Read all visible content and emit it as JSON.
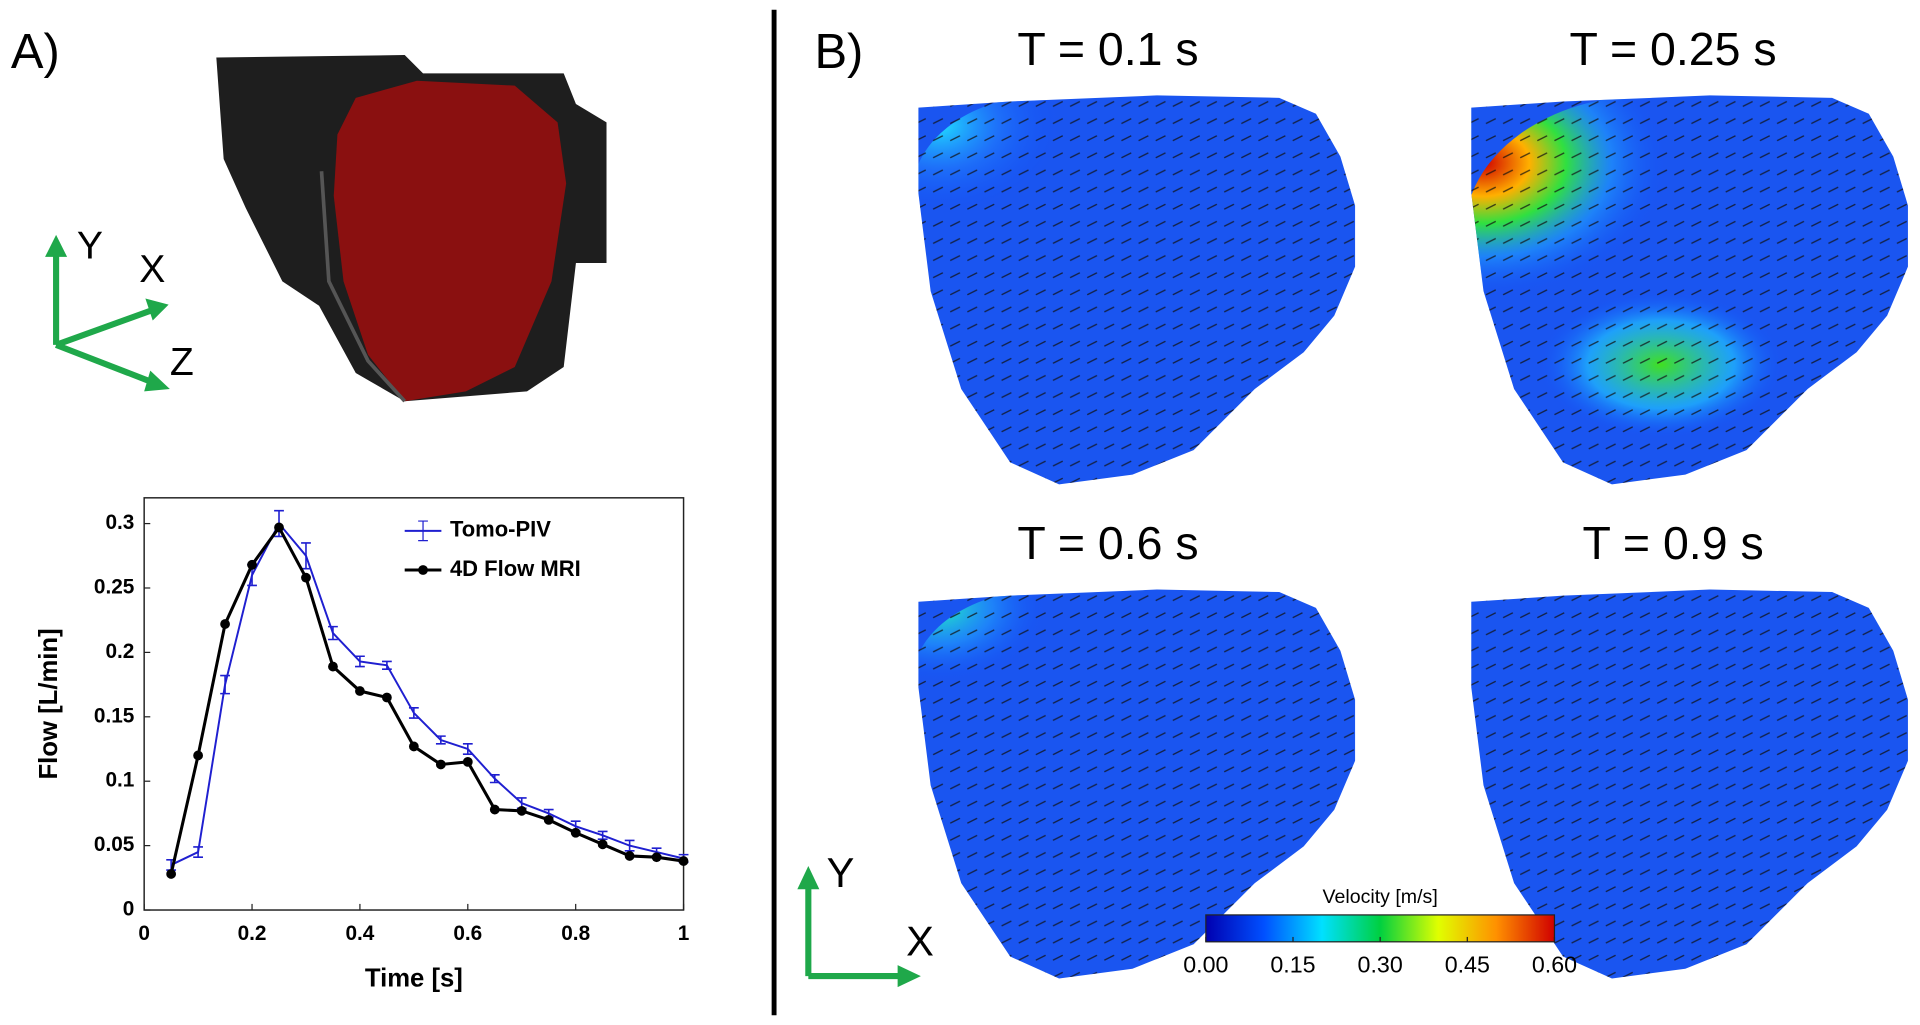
{
  "panel_a": {
    "label": "A)",
    "axes_3d": {
      "labels": [
        "Y",
        "X",
        "Z"
      ]
    }
  },
  "chart_data": {
    "type": "line",
    "x": [
      0.05,
      0.1,
      0.15,
      0.2,
      0.25,
      0.3,
      0.35,
      0.4,
      0.45,
      0.5,
      0.55,
      0.6,
      0.65,
      0.7,
      0.75,
      0.8,
      0.85,
      0.9,
      0.95,
      1
    ],
    "xlabel": "Time [s]",
    "ylabel": "Flow [L/min]",
    "xlim": [
      0,
      1
    ],
    "ylim": [
      0,
      0.32
    ],
    "xticks": [
      0,
      0.2,
      0.4,
      0.6,
      0.8,
      1
    ],
    "yticks": [
      0,
      0.05,
      0.1,
      0.15,
      0.2,
      0.25,
      0.3
    ],
    "legend": "upper right",
    "series": [
      {
        "name": "Tomo-PIV",
        "color": "#1f1fd0",
        "marker": "errorbar",
        "values": [
          0.035,
          0.045,
          0.175,
          0.26,
          0.3,
          0.275,
          0.215,
          0.193,
          0.19,
          0.153,
          0.132,
          0.125,
          0.102,
          0.083,
          0.075,
          0.065,
          0.058,
          0.05,
          0.045,
          0.04
        ],
        "errors": [
          0.004,
          0.004,
          0.007,
          0.008,
          0.01,
          0.01,
          0.005,
          0.004,
          0.003,
          0.004,
          0.003,
          0.004,
          0.003,
          0.004,
          0.003,
          0.004,
          0.003,
          0.004,
          0.003,
          0.003
        ]
      },
      {
        "name": "4D Flow MRI",
        "color": "#000000",
        "marker": "dot",
        "values": [
          0.028,
          0.12,
          0.222,
          0.268,
          0.297,
          0.258,
          0.189,
          0.17,
          0.165,
          0.127,
          0.113,
          0.115,
          0.078,
          0.077,
          0.07,
          0.06,
          0.051,
          0.042,
          0.041,
          0.038
        ]
      }
    ]
  },
  "panel_b": {
    "label": "B)",
    "snapshots": [
      {
        "title": "T = 0.1 s"
      },
      {
        "title": "T = 0.25 s"
      },
      {
        "title": "T = 0.6 s"
      },
      {
        "title": "T = 0.9 s"
      }
    ],
    "axes_2d": {
      "labels": [
        "Y",
        "X"
      ]
    },
    "colorbar": {
      "title": "Velocity [m/s]",
      "lim": [
        0,
        0.6
      ],
      "ticks": [
        {
          "value": 0,
          "label": "0.00"
        },
        {
          "value": 0.15,
          "label": "0.15"
        },
        {
          "value": 0.3,
          "label": "0.30"
        },
        {
          "value": 0.45,
          "label": "0.45"
        },
        {
          "value": 0.6,
          "label": "0.60"
        }
      ],
      "colors": [
        "#0000b0",
        "#0050ff",
        "#00e0ff",
        "#00d040",
        "#e0ff00",
        "#ff9000",
        "#d00000"
      ]
    }
  }
}
